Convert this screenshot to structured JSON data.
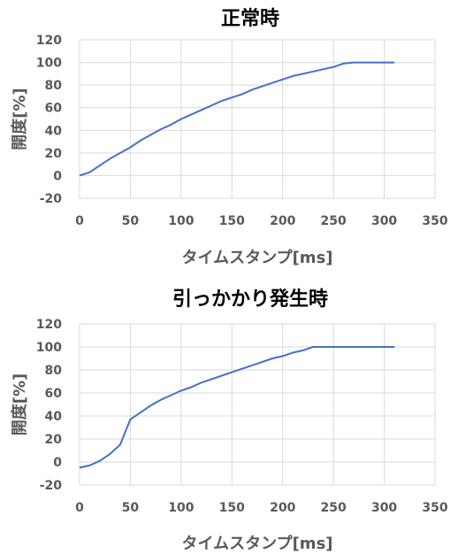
{
  "chart_data": [
    {
      "type": "line",
      "title": "正常時",
      "xlabel": "タイムスタンプ[ms]",
      "ylabel": "開度[%]",
      "xlim": [
        0,
        350
      ],
      "ylim": [
        -20,
        120
      ],
      "xticks": [
        "0",
        "50",
        "100",
        "150",
        "200",
        "250",
        "300",
        "350"
      ],
      "yticks": [
        "-20",
        "0",
        "20",
        "40",
        "60",
        "80",
        "100",
        "120"
      ],
      "grid": true,
      "color": "#4472c4",
      "series": [
        {
          "x": [
            0,
            10,
            20,
            30,
            40,
            50,
            60,
            70,
            80,
            90,
            100,
            110,
            120,
            130,
            140,
            150,
            160,
            170,
            180,
            190,
            200,
            210,
            220,
            230,
            240,
            250,
            260,
            270,
            280,
            290,
            300,
            310
          ],
          "y": [
            0,
            3,
            9,
            15,
            20,
            25,
            31,
            36,
            41,
            45,
            50,
            54,
            58,
            62,
            66,
            69,
            72,
            76,
            79,
            82,
            85,
            88,
            90,
            92,
            94,
            96,
            99,
            100,
            100,
            100,
            100,
            100
          ]
        }
      ]
    },
    {
      "type": "line",
      "title": "引っかかり発生時",
      "xlabel": "タイムスタンプ[ms]",
      "ylabel": "開度[%]",
      "xlim": [
        0,
        350
      ],
      "ylim": [
        -20,
        120
      ],
      "xticks": [
        "0",
        "50",
        "100",
        "150",
        "200",
        "250",
        "300",
        "350"
      ],
      "yticks": [
        "-20",
        "0",
        "20",
        "40",
        "60",
        "80",
        "100",
        "120"
      ],
      "grid": true,
      "color": "#4472c4",
      "series": [
        {
          "x": [
            0,
            10,
            20,
            30,
            40,
            50,
            60,
            70,
            80,
            90,
            100,
            110,
            120,
            130,
            140,
            150,
            160,
            170,
            180,
            190,
            200,
            210,
            220,
            230,
            240,
            250,
            260,
            270,
            280,
            290,
            300,
            310
          ],
          "y": [
            -5,
            -3,
            1,
            7,
            15,
            37,
            43,
            49,
            54,
            58,
            62,
            65,
            69,
            72,
            75,
            78,
            81,
            84,
            87,
            90,
            92,
            95,
            97,
            100,
            100,
            100,
            100,
            100,
            100,
            100,
            100,
            100
          ]
        }
      ]
    }
  ]
}
